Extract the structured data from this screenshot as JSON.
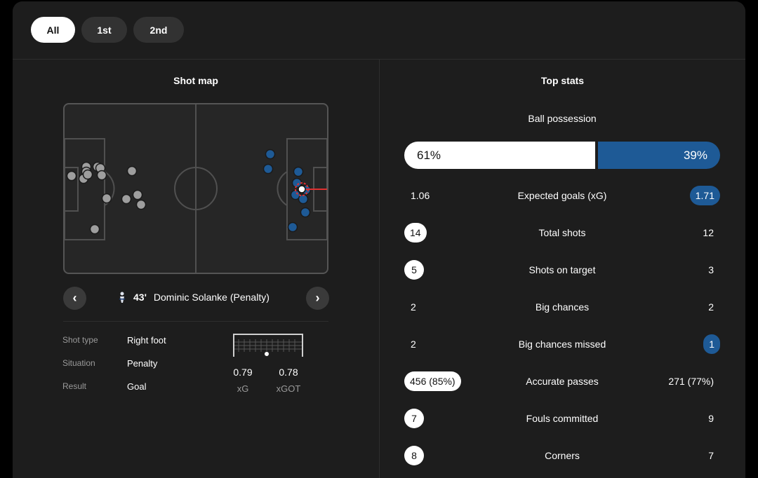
{
  "period_tabs": [
    {
      "label": "All",
      "active": true
    },
    {
      "label": "1st",
      "active": false
    },
    {
      "label": "2nd",
      "active": false
    }
  ],
  "shot_map": {
    "title": "Shot map",
    "colors": {
      "home": "#9e9e9e",
      "away": "#1e5a96",
      "selected": "#e03030"
    },
    "selected_shot": {
      "minute": "43'",
      "description": "Dominic Solanke (Penalty)",
      "team_icon": "tottenham-crest-icon"
    },
    "details": [
      {
        "label": "Shot type",
        "value": "Right foot"
      },
      {
        "label": "Situation",
        "value": "Penalty"
      },
      {
        "label": "Result",
        "value": "Goal"
      }
    ],
    "xg": {
      "value": "0.79",
      "label": "xG"
    },
    "xgot": {
      "value": "0.78",
      "label": "xGOT"
    }
  },
  "top_stats": {
    "title": "Top stats",
    "possession": {
      "label": "Ball possession",
      "home": "61%",
      "away": "39%",
      "home_share": 0.61
    },
    "rows": [
      {
        "name": "Expected goals (xG)",
        "home": "1.06",
        "away": "1.71",
        "highlight": "away"
      },
      {
        "name": "Total shots",
        "home": "14",
        "away": "12",
        "highlight": "home"
      },
      {
        "name": "Shots on target",
        "home": "5",
        "away": "3",
        "highlight": "home"
      },
      {
        "name": "Big chances",
        "home": "2",
        "away": "2",
        "highlight": "none"
      },
      {
        "name": "Big chances missed",
        "home": "2",
        "away": "1",
        "highlight": "away"
      },
      {
        "name": "Accurate passes",
        "home": "456 (85%)",
        "away": "271 (77%)",
        "highlight": "home"
      },
      {
        "name": "Fouls committed",
        "home": "7",
        "away": "9",
        "highlight": "home"
      },
      {
        "name": "Corners",
        "home": "8",
        "away": "7",
        "highlight": "home"
      }
    ]
  }
}
